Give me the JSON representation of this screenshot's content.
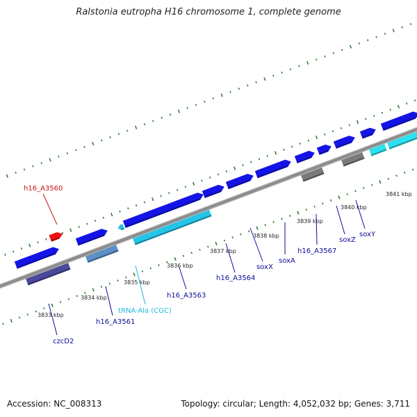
{
  "title": "Ralstonia eutropha H16 chromosome 1, complete genome",
  "footer": {
    "accession": "Accession: NC_008313",
    "topology": "Topology: circular; Length: 4,052,032 bp; Genes: 3,711"
  },
  "colors": {
    "backbone": "#8c8c8c",
    "tick": "#2e7d32",
    "forward_gene": "#1414e6",
    "reverse_gene": "#4a4a9c",
    "steel_gene": "#5b8fc6",
    "trna_gene": "#25c5e8",
    "highlight_gene": "#ee1111",
    "gray_gene": "#7a7a7a",
    "label_blue": "#0b0b9a",
    "label_red": "#cc1111",
    "label_cyan": "#22bbdd"
  },
  "scale_labels": [
    "3833 kbp",
    "3834 kbp",
    "3835 kbp",
    "3836 kbp",
    "3837 kbp",
    "3838 kbp",
    "3839 kbp",
    "3840 kbp",
    "3841 kbp"
  ],
  "gene_labels": [
    {
      "text": "h16_A3560",
      "color": "label_red"
    },
    {
      "text": "czcD2",
      "color": "label_blue"
    },
    {
      "text": "h16_A3561",
      "color": "label_blue"
    },
    {
      "text": "tRNA-Ala (CGC)",
      "color": "label_cyan"
    },
    {
      "text": "h16_A3563",
      "color": "label_blue"
    },
    {
      "text": "h16_A3564",
      "color": "label_blue"
    },
    {
      "text": "soxX",
      "color": "label_blue"
    },
    {
      "text": "soxA",
      "color": "label_blue"
    },
    {
      "text": "h16_A3567",
      "color": "label_blue"
    },
    {
      "text": "soxZ",
      "color": "label_blue"
    },
    {
      "text": "soxY",
      "color": "label_blue"
    }
  ]
}
